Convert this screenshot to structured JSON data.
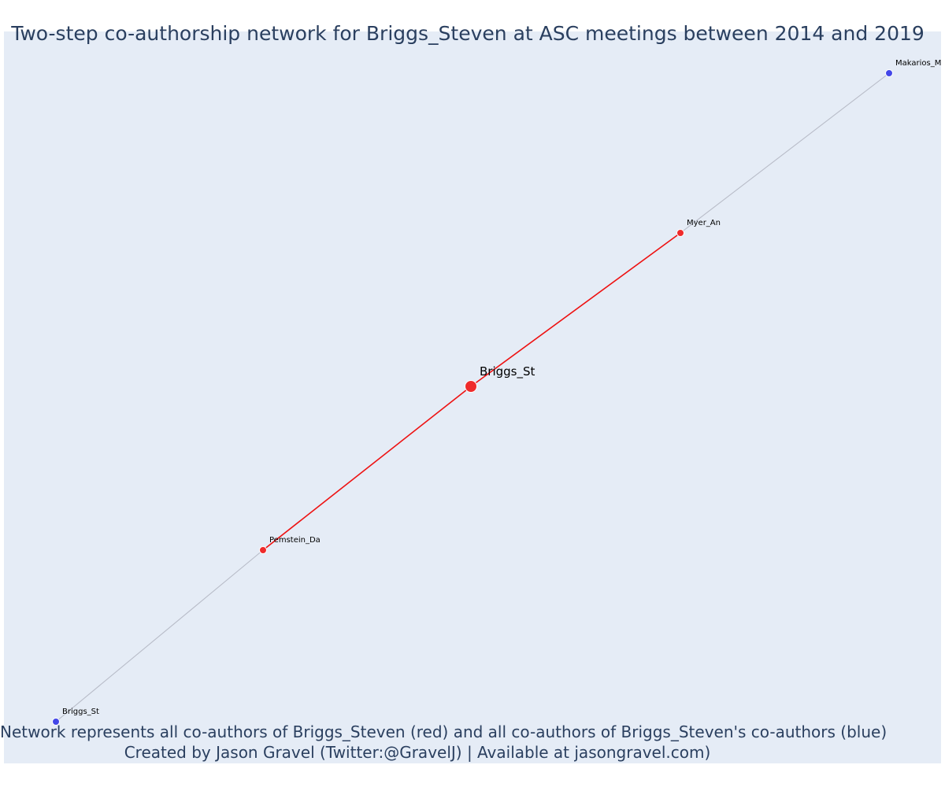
{
  "title": "Two-step co-authorship network for Briggs_Steven at ASC meetings between 2014 and 2019",
  "captions": [
    "Network represents all co-authors of Briggs_Steven (red) and all co-authors of Briggs_Steven's co-authors (blue)",
    "Created by Jason Gravel (Twitter:@GravelJ) | Available at jasongravel.com)"
  ],
  "colors": {
    "background": "#e5ecf6",
    "direct": "#ef2b2b",
    "indirect": "#4347e8",
    "direct_edge": "#ee1111",
    "indirect_edge": "#b8bcc8",
    "node_outline": "#ffffff"
  },
  "nodes": [
    {
      "id": "center",
      "label": "Briggs_St",
      "group": "center"
    },
    {
      "id": "myer",
      "label": "Myer_An",
      "group": "direct"
    },
    {
      "id": "pemstein",
      "label": "Pemstein_Da",
      "group": "direct"
    },
    {
      "id": "makarios",
      "label": "Makarios_Ma",
      "group": "indirect"
    },
    {
      "id": "briggs2",
      "label": "Briggs_St",
      "group": "indirect"
    }
  ],
  "edges": [
    {
      "from": "center",
      "to": "myer",
      "type": "direct"
    },
    {
      "from": "center",
      "to": "pemstein",
      "type": "direct"
    },
    {
      "from": "myer",
      "to": "makarios",
      "type": "indirect"
    },
    {
      "from": "pemstein",
      "to": "briggs2",
      "type": "indirect"
    }
  ]
}
